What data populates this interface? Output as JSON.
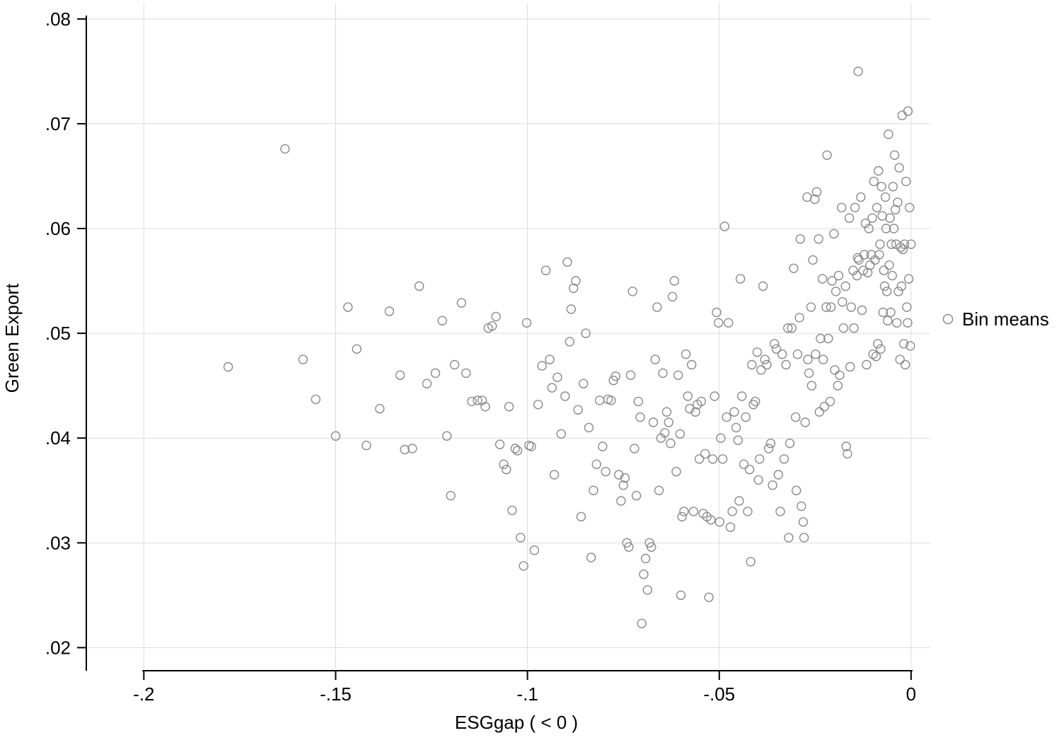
{
  "colors": {
    "background": "#ffffff",
    "grid": "#dcdcdc",
    "axis": "#000000",
    "marker": "#8a8a8a",
    "text": "#000000"
  },
  "chart_data": {
    "type": "scatter",
    "title": "",
    "xlabel": "ESGgap ( < 0 )",
    "ylabel": "Green Export",
    "xlim": [
      -0.215,
      0.005
    ],
    "ylim": [
      0.018,
      0.081
    ],
    "grid": true,
    "x_ticks": [
      {
        "v": -0.2,
        "label": "-.2"
      },
      {
        "v": -0.15,
        "label": "-.15"
      },
      {
        "v": -0.1,
        "label": "-.1"
      },
      {
        "v": -0.05,
        "label": "-.05"
      },
      {
        "v": 0,
        "label": "0"
      }
    ],
    "y_ticks": [
      {
        "v": 0.02,
        "label": ".02"
      },
      {
        "v": 0.03,
        "label": ".03"
      },
      {
        "v": 0.04,
        "label": ".04"
      },
      {
        "v": 0.05,
        "label": ".05"
      },
      {
        "v": 0.06,
        "label": ".06"
      },
      {
        "v": 0.07,
        "label": ".07"
      },
      {
        "v": 0.08,
        "label": ".08"
      }
    ],
    "legend": {
      "position": "right",
      "label": "Bin means",
      "marker": "open-circle"
    },
    "series": [
      {
        "name": "Bin means",
        "marker": "open-circle",
        "color": "#8a8a8a",
        "points": [
          [
            -0.178,
            0.0468
          ],
          [
            -0.1632,
            0.0676
          ],
          [
            -0.1585,
            0.0475
          ],
          [
            -0.1552,
            0.0437
          ],
          [
            -0.15,
            0.0402
          ],
          [
            -0.1468,
            0.0525
          ],
          [
            -0.1445,
            0.0485
          ],
          [
            -0.142,
            0.0393
          ],
          [
            -0.1385,
            0.0428
          ],
          [
            -0.136,
            0.0521
          ],
          [
            -0.1332,
            0.046
          ],
          [
            -0.132,
            0.0389
          ],
          [
            -0.13,
            0.039
          ],
          [
            -0.1282,
            0.0545
          ],
          [
            -0.1262,
            0.0452
          ],
          [
            -0.124,
            0.0462
          ],
          [
            -0.1222,
            0.0512
          ],
          [
            -0.121,
            0.0402
          ],
          [
            -0.12,
            0.0345
          ],
          [
            -0.119,
            0.047
          ],
          [
            -0.1172,
            0.0529
          ],
          [
            -0.116,
            0.0462
          ],
          [
            -0.1145,
            0.0435
          ],
          [
            -0.113,
            0.0436
          ],
          [
            -0.1118,
            0.0436
          ],
          [
            -0.111,
            0.043
          ],
          [
            -0.1102,
            0.0505
          ],
          [
            -0.1092,
            0.0507
          ],
          [
            -0.1082,
            0.0516
          ],
          [
            -0.1072,
            0.0394
          ],
          [
            -0.1062,
            0.0375
          ],
          [
            -0.1055,
            0.037
          ],
          [
            -0.1048,
            0.043
          ],
          [
            -0.104,
            0.0331
          ],
          [
            -0.1032,
            0.039
          ],
          [
            -0.1026,
            0.0388
          ],
          [
            -0.1018,
            0.0305
          ],
          [
            -0.101,
            0.0278
          ],
          [
            -0.1002,
            0.051
          ],
          [
            -0.0996,
            0.0393
          ],
          [
            -0.099,
            0.0392
          ],
          [
            -0.0982,
            0.0293
          ],
          [
            -0.0972,
            0.0432
          ],
          [
            -0.0962,
            0.0469
          ],
          [
            -0.0952,
            0.056
          ],
          [
            -0.0942,
            0.0475
          ],
          [
            -0.0936,
            0.0448
          ],
          [
            -0.093,
            0.0365
          ],
          [
            -0.0922,
            0.0458
          ],
          [
            -0.0912,
            0.0404
          ],
          [
            -0.0902,
            0.044
          ],
          [
            -0.0896,
            0.0568
          ],
          [
            -0.089,
            0.0492
          ],
          [
            -0.0886,
            0.0523
          ],
          [
            -0.088,
            0.0543
          ],
          [
            -0.0874,
            0.055
          ],
          [
            -0.0868,
            0.0427
          ],
          [
            -0.086,
            0.0325
          ],
          [
            -0.0854,
            0.0452
          ],
          [
            -0.0848,
            0.05
          ],
          [
            -0.084,
            0.041
          ],
          [
            -0.0834,
            0.0286
          ],
          [
            -0.0828,
            0.035
          ],
          [
            -0.082,
            0.0375
          ],
          [
            -0.0812,
            0.0436
          ],
          [
            -0.0804,
            0.0392
          ],
          [
            -0.0796,
            0.0368
          ],
          [
            -0.079,
            0.0437
          ],
          [
            -0.0782,
            0.0436
          ],
          [
            -0.0776,
            0.0455
          ],
          [
            -0.077,
            0.0459
          ],
          [
            -0.0762,
            0.0365
          ],
          [
            -0.0756,
            0.034
          ],
          [
            -0.075,
            0.0355
          ],
          [
            -0.0746,
            0.0362
          ],
          [
            -0.0741,
            0.03
          ],
          [
            -0.0736,
            0.0296
          ],
          [
            -0.0731,
            0.046
          ],
          [
            -0.0726,
            0.054
          ],
          [
            -0.0721,
            0.039
          ],
          [
            -0.0716,
            0.0345
          ],
          [
            -0.0711,
            0.0435
          ],
          [
            -0.0706,
            0.042
          ],
          [
            -0.0702,
            0.0223
          ],
          [
            -0.0697,
            0.027
          ],
          [
            -0.0692,
            0.0285
          ],
          [
            -0.0687,
            0.0255
          ],
          [
            -0.0682,
            0.03
          ],
          [
            -0.0677,
            0.0296
          ],
          [
            -0.0672,
            0.0415
          ],
          [
            -0.0667,
            0.0475
          ],
          [
            -0.0662,
            0.0525
          ],
          [
            -0.0657,
            0.035
          ],
          [
            -0.0652,
            0.04
          ],
          [
            -0.0647,
            0.0462
          ],
          [
            -0.0642,
            0.0405
          ],
          [
            -0.0637,
            0.0425
          ],
          [
            -0.0632,
            0.0415
          ],
          [
            -0.0627,
            0.0395
          ],
          [
            -0.0622,
            0.0535
          ],
          [
            -0.0617,
            0.055
          ],
          [
            -0.0612,
            0.0368
          ],
          [
            -0.0607,
            0.046
          ],
          [
            -0.0602,
            0.0404
          ],
          [
            -0.06,
            0.025
          ],
          [
            -0.0597,
            0.0325
          ],
          [
            -0.0592,
            0.033
          ],
          [
            -0.0587,
            0.048
          ],
          [
            -0.0582,
            0.044
          ],
          [
            -0.0577,
            0.0428
          ],
          [
            -0.0572,
            0.047
          ],
          [
            -0.0567,
            0.033
          ],
          [
            -0.0562,
            0.0425
          ],
          [
            -0.0557,
            0.0432
          ],
          [
            -0.0552,
            0.038
          ],
          [
            -0.0547,
            0.0435
          ],
          [
            -0.0542,
            0.0328
          ],
          [
            -0.0537,
            0.0385
          ],
          [
            -0.0532,
            0.0325
          ],
          [
            -0.0527,
            0.0248
          ],
          [
            -0.0522,
            0.0322
          ],
          [
            -0.0517,
            0.038
          ],
          [
            -0.0512,
            0.044
          ],
          [
            -0.0507,
            0.052
          ],
          [
            -0.0502,
            0.051
          ],
          [
            -0.0499,
            0.032
          ],
          [
            -0.0496,
            0.04
          ],
          [
            -0.0491,
            0.038
          ],
          [
            -0.0486,
            0.0602
          ],
          [
            -0.0481,
            0.042
          ],
          [
            -0.0476,
            0.051
          ],
          [
            -0.0471,
            0.0315
          ],
          [
            -0.0466,
            0.033
          ],
          [
            -0.0461,
            0.0425
          ],
          [
            -0.0456,
            0.041
          ],
          [
            -0.0451,
            0.0398
          ],
          [
            -0.0448,
            0.034
          ],
          [
            -0.0445,
            0.0552
          ],
          [
            -0.0441,
            0.044
          ],
          [
            -0.0436,
            0.0375
          ],
          [
            -0.0431,
            0.042
          ],
          [
            -0.0426,
            0.033
          ],
          [
            -0.0421,
            0.037
          ],
          [
            -0.0418,
            0.0282
          ],
          [
            -0.0415,
            0.047
          ],
          [
            -0.0411,
            0.0432
          ],
          [
            -0.0406,
            0.0435
          ],
          [
            -0.0401,
            0.0482
          ],
          [
            -0.0398,
            0.036
          ],
          [
            -0.0395,
            0.038
          ],
          [
            -0.0391,
            0.0465
          ],
          [
            -0.0386,
            0.0545
          ],
          [
            -0.0381,
            0.0475
          ],
          [
            -0.0376,
            0.047
          ],
          [
            -0.0371,
            0.039
          ],
          [
            -0.0366,
            0.0395
          ],
          [
            -0.0361,
            0.0355
          ],
          [
            -0.0356,
            0.049
          ],
          [
            -0.0351,
            0.0485
          ],
          [
            -0.0346,
            0.0365
          ],
          [
            -0.0341,
            0.033
          ],
          [
            -0.0336,
            0.048
          ],
          [
            -0.0331,
            0.038
          ],
          [
            -0.0326,
            0.047
          ],
          [
            -0.0321,
            0.0505
          ],
          [
            -0.0319,
            0.0305
          ],
          [
            -0.0316,
            0.0395
          ],
          [
            -0.0311,
            0.0505
          ],
          [
            -0.0306,
            0.0562
          ],
          [
            -0.0301,
            0.042
          ],
          [
            -0.0299,
            0.035
          ],
          [
            -0.0296,
            0.048
          ],
          [
            -0.0291,
            0.0515
          ],
          [
            -0.0289,
            0.059
          ],
          [
            -0.0286,
            0.0335
          ],
          [
            -0.0281,
            0.032
          ],
          [
            -0.0279,
            0.0305
          ],
          [
            -0.0276,
            0.0415
          ],
          [
            -0.0271,
            0.063
          ],
          [
            -0.0269,
            0.0475
          ],
          [
            -0.0266,
            0.0462
          ],
          [
            -0.0261,
            0.0525
          ],
          [
            -0.0259,
            0.045
          ],
          [
            -0.0256,
            0.057
          ],
          [
            -0.0251,
            0.0628
          ],
          [
            -0.0249,
            0.048
          ],
          [
            -0.0246,
            0.0635
          ],
          [
            -0.0241,
            0.059
          ],
          [
            -0.0239,
            0.0425
          ],
          [
            -0.0236,
            0.0495
          ],
          [
            -0.0231,
            0.0552
          ],
          [
            -0.0229,
            0.0475
          ],
          [
            -0.0226,
            0.043
          ],
          [
            -0.0221,
            0.0525
          ],
          [
            -0.0219,
            0.067
          ],
          [
            -0.0216,
            0.0495
          ],
          [
            -0.0211,
            0.0435
          ],
          [
            -0.0209,
            0.0525
          ],
          [
            -0.0206,
            0.055
          ],
          [
            -0.0201,
            0.0595
          ],
          [
            -0.0199,
            0.0465
          ],
          [
            -0.0196,
            0.054
          ],
          [
            -0.0191,
            0.045
          ],
          [
            -0.0189,
            0.0555
          ],
          [
            -0.0186,
            0.046
          ],
          [
            -0.0181,
            0.062
          ],
          [
            -0.0179,
            0.053
          ],
          [
            -0.0176,
            0.0505
          ],
          [
            -0.0171,
            0.0545
          ],
          [
            -0.0169,
            0.0392
          ],
          [
            -0.0166,
            0.0385
          ],
          [
            -0.0161,
            0.061
          ],
          [
            -0.0159,
            0.0468
          ],
          [
            -0.0156,
            0.0525
          ],
          [
            -0.0151,
            0.056
          ],
          [
            -0.0149,
            0.0505
          ],
          [
            -0.0146,
            0.062
          ],
          [
            -0.0141,
            0.0555
          ],
          [
            -0.0139,
            0.0572
          ],
          [
            -0.0138,
            0.075
          ],
          [
            -0.0136,
            0.057
          ],
          [
            -0.0131,
            0.063
          ],
          [
            -0.0128,
            0.0522
          ],
          [
            -0.0125,
            0.056
          ],
          [
            -0.0122,
            0.0575
          ],
          [
            -0.0119,
            0.0605
          ],
          [
            -0.0116,
            0.047
          ],
          [
            -0.0113,
            0.0558
          ],
          [
            -0.011,
            0.06
          ],
          [
            -0.0107,
            0.0565
          ],
          [
            -0.0104,
            0.0575
          ],
          [
            -0.0101,
            0.061
          ],
          [
            -0.0099,
            0.048
          ],
          [
            -0.0097,
            0.0645
          ],
          [
            -0.0094,
            0.057
          ],
          [
            -0.0091,
            0.0478
          ],
          [
            -0.0089,
            0.062
          ],
          [
            -0.0087,
            0.049
          ],
          [
            -0.0085,
            0.0655
          ],
          [
            -0.0083,
            0.0575
          ],
          [
            -0.0081,
            0.0585
          ],
          [
            -0.0079,
            0.0485
          ],
          [
            -0.0077,
            0.064
          ],
          [
            -0.0075,
            0.0612
          ],
          [
            -0.0073,
            0.052
          ],
          [
            -0.0071,
            0.056
          ],
          [
            -0.0069,
            0.0545
          ],
          [
            -0.0067,
            0.063
          ],
          [
            -0.0065,
            0.06
          ],
          [
            -0.0063,
            0.054
          ],
          [
            -0.0061,
            0.0512
          ],
          [
            -0.0059,
            0.069
          ],
          [
            -0.0057,
            0.0565
          ],
          [
            -0.0055,
            0.061
          ],
          [
            -0.0053,
            0.052
          ],
          [
            -0.0051,
            0.0585
          ],
          [
            -0.0049,
            0.0555
          ],
          [
            -0.0047,
            0.064
          ],
          [
            -0.0045,
            0.06
          ],
          [
            -0.0043,
            0.067
          ],
          [
            -0.0041,
            0.0618
          ],
          [
            -0.0039,
            0.0585
          ],
          [
            -0.0037,
            0.051
          ],
          [
            -0.0035,
            0.0625
          ],
          [
            -0.0033,
            0.054
          ],
          [
            -0.0031,
            0.0658
          ],
          [
            -0.0029,
            0.0475
          ],
          [
            -0.0027,
            0.0582
          ],
          [
            -0.0025,
            0.0545
          ],
          [
            -0.0023,
            0.0708
          ],
          [
            -0.0021,
            0.058
          ],
          [
            -0.0019,
            0.049
          ],
          [
            -0.0017,
            0.0585
          ],
          [
            -0.0015,
            0.047
          ],
          [
            -0.0013,
            0.0645
          ],
          [
            -0.0011,
            0.0525
          ],
          [
            -0.0009,
            0.051
          ],
          [
            -0.0008,
            0.0712
          ],
          [
            -0.0006,
            0.0552
          ],
          [
            -0.0004,
            0.062
          ],
          [
            -0.0002,
            0.0488
          ],
          [
            0,
            0.0585
          ]
        ]
      }
    ]
  }
}
